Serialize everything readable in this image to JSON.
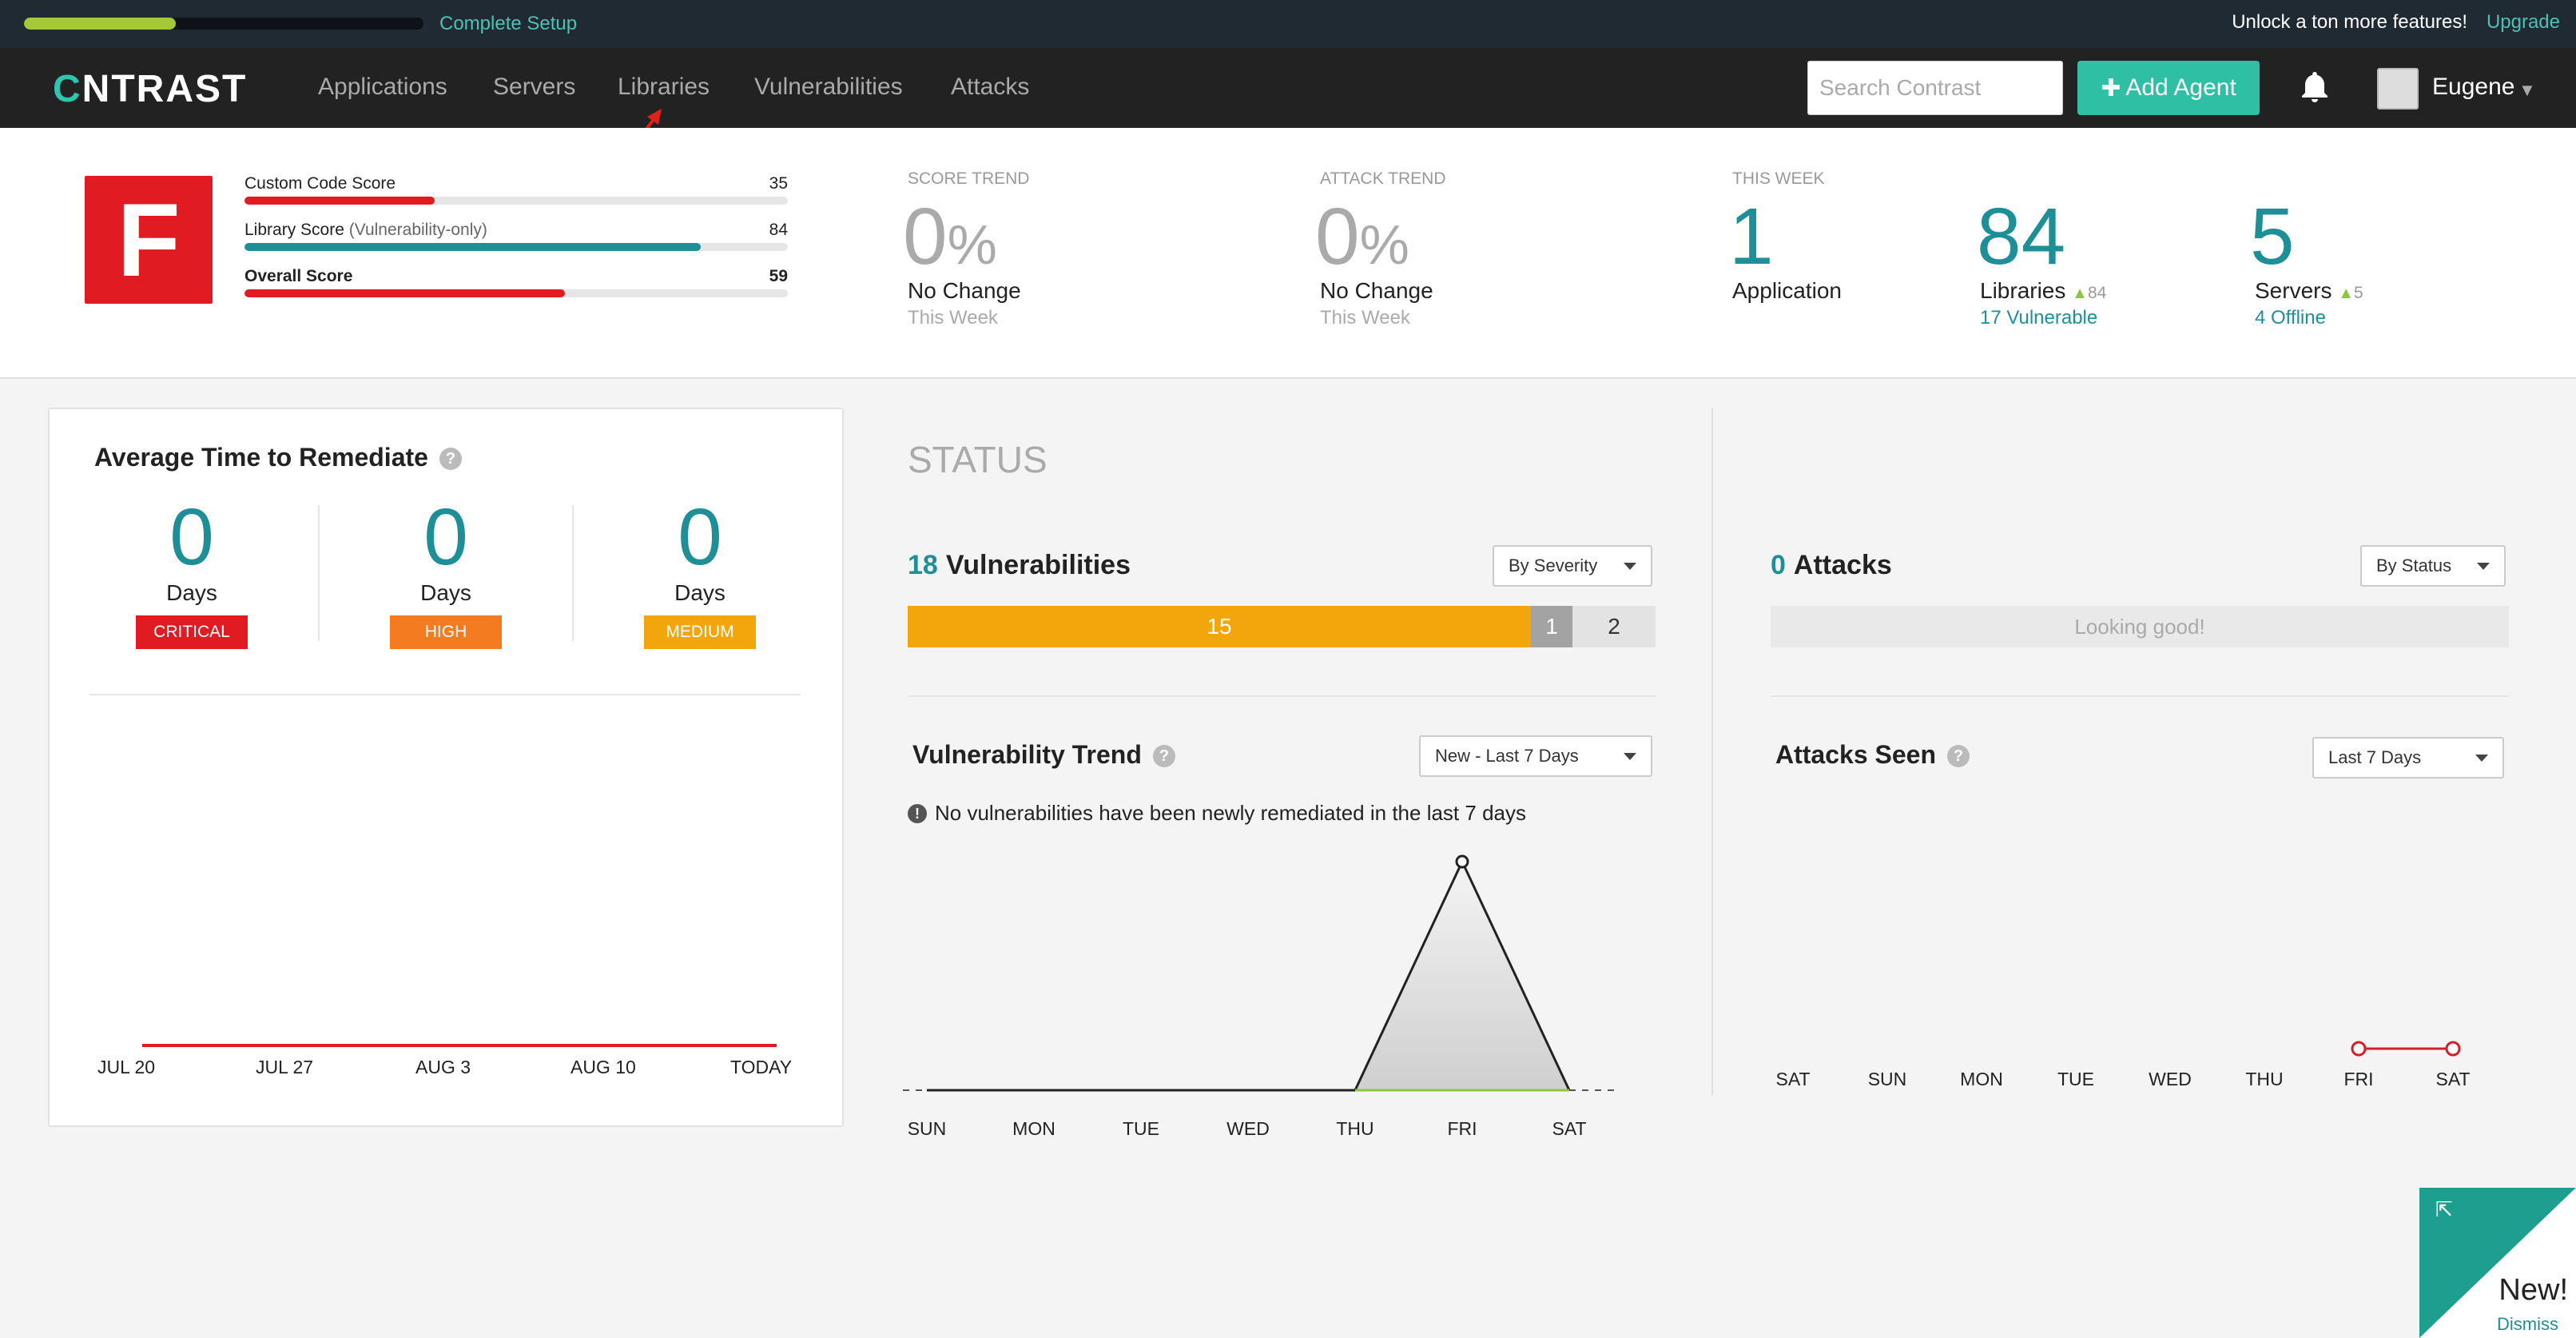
{
  "topbar": {
    "setup_progress": 0.38,
    "setup_label": "Complete Setup",
    "unlock_text": "Unlock a ton more features!",
    "upgrade_label": "Upgrade"
  },
  "nav": {
    "logo_prefix": "C",
    "logo_rest": "NTRAST",
    "items": [
      "Applications",
      "Servers",
      "Libraries",
      "Vulnerabilities",
      "Attacks"
    ],
    "search_placeholder": "Search Contrast",
    "add_agent_label": "Add Agent",
    "user_name": "Eugene"
  },
  "scores": {
    "grade": "F",
    "custom_label": "Custom Code Score",
    "custom_value": "35",
    "library_label": "Library Score",
    "library_note": "(Vulnerability-only)",
    "library_value": "84",
    "overall_label": "Overall Score",
    "overall_value": "59"
  },
  "trends": {
    "score": {
      "head": "SCORE TREND",
      "value": "0",
      "unit": "%",
      "line": "No Change",
      "sub": "This Week"
    },
    "attack": {
      "head": "ATTACK TREND",
      "value": "0",
      "unit": "%",
      "line": "No Change",
      "sub": "This Week"
    }
  },
  "this_week": {
    "head": "THIS WEEK",
    "applications": {
      "value": "1",
      "label": "Application"
    },
    "libraries": {
      "value": "84",
      "label": "Libraries",
      "delta": "84",
      "sub": "17 Vulnerable"
    },
    "servers": {
      "value": "5",
      "label": "Servers",
      "delta": "5",
      "sub": "4 Offline"
    }
  },
  "remediate": {
    "title": "Average Time to Remediate",
    "critical": {
      "value": "0",
      "unit": "Days",
      "badge": "CRITICAL"
    },
    "high": {
      "value": "0",
      "unit": "Days",
      "badge": "HIGH"
    },
    "medium": {
      "value": "0",
      "unit": "Days",
      "badge": "MEDIUM"
    },
    "x_labels": [
      "JUL 20",
      "JUL 27",
      "AUG 3",
      "AUG 10",
      "TODAY"
    ]
  },
  "status": {
    "title": "STATUS",
    "vuln_count": "18",
    "vuln_label": "Vulnerabilities",
    "vuln_dropdown": "By Severity",
    "severity_segments": [
      {
        "label": "15",
        "value": 15,
        "color": "#f2a60c"
      },
      {
        "label": "1",
        "value": 1,
        "color": "#a3a3a3"
      },
      {
        "label": "2",
        "value": 2,
        "color": "#e3e3e3"
      }
    ],
    "trend_title": "Vulnerability Trend",
    "trend_dropdown": "New - Last 7 Days",
    "trend_notice": "No vulnerabilities have been newly remediated in the last 7 days"
  },
  "attacks": {
    "count": "0",
    "label": "Attacks",
    "dropdown": "By Status",
    "empty_text": "Looking good!",
    "seen_title": "Attacks Seen",
    "seen_dropdown": "Last 7 Days"
  },
  "new_panel": {
    "label": "New!",
    "dismiss": "Dismiss"
  },
  "chart_data": [
    {
      "type": "line",
      "x": [
        "SUN",
        "MON",
        "TUE",
        "WED",
        "THU",
        "FRI",
        "SAT"
      ],
      "series": [
        {
          "values": [
            0,
            0,
            0,
            0,
            0,
            2,
            0
          ]
        }
      ]
    },
    {
      "type": "line",
      "x": [
        "SAT",
        "SUN",
        "MON",
        "TUE",
        "WED",
        "THU",
        "FRI",
        "SAT"
      ],
      "series": [
        {
          "values": [
            null,
            null,
            null,
            null,
            null,
            null,
            0,
            0
          ]
        }
      ]
    }
  ]
}
